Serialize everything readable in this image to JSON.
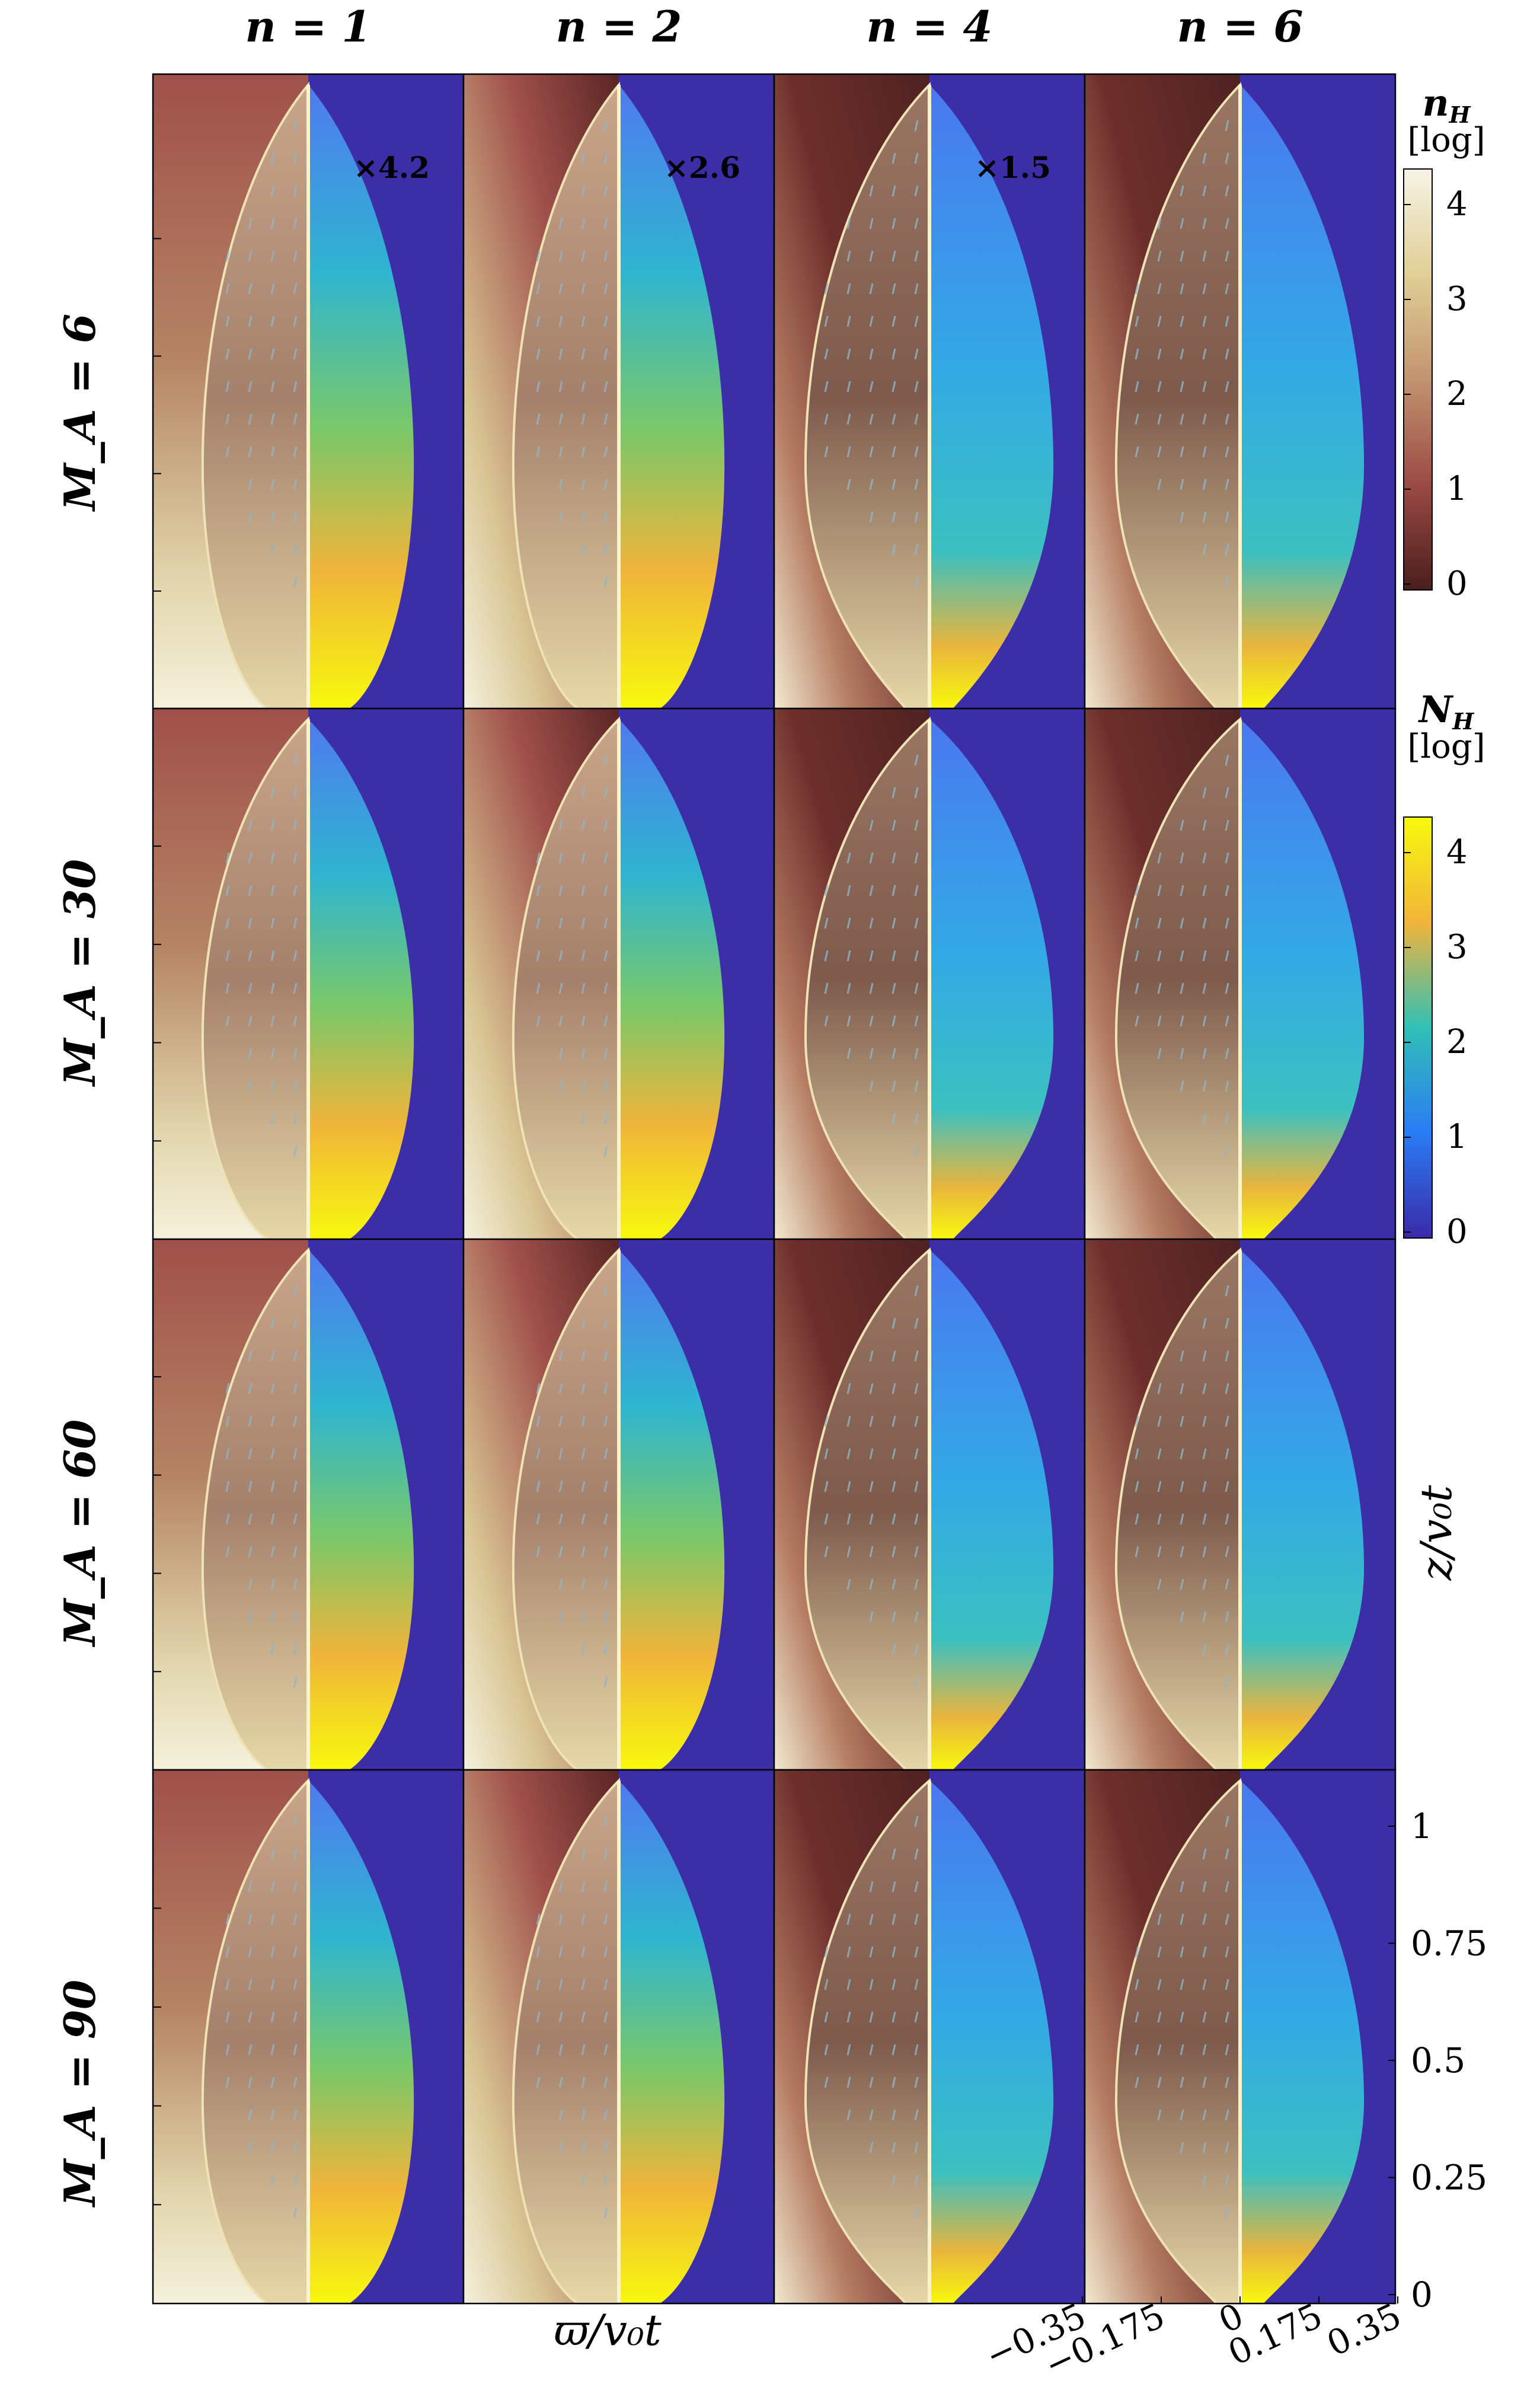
{
  "figure": {
    "column_headers": [
      "n = 1",
      "n = 2",
      "n = 4",
      "n = 6"
    ],
    "row_headers": [
      "M_A = 6",
      "M_A = 30",
      "M_A = 60",
      "M_A = 90"
    ],
    "multipliers": [
      "×4.2",
      "×2.6",
      "×1.5"
    ],
    "x_axis_label": "ϖ/v₀t",
    "z_axis_label": "z/v₀t",
    "x_ticks": [
      "−0.35",
      "−0.175",
      "0",
      "0.175",
      "0.35"
    ],
    "z_ticks": [
      "1",
      "0.75",
      "0.5",
      "0.25",
      "0"
    ]
  },
  "colorbars": [
    {
      "name": "n_H",
      "title_main": "n",
      "title_sub": "H",
      "unit": "[log]",
      "ticks": [
        "4",
        "3",
        "2",
        "1",
        "0"
      ],
      "colors": [
        "#f7f2e0",
        "#e5d6a0",
        "#c8a070",
        "#a05a48",
        "#4a1e1e"
      ]
    },
    {
      "name": "N_H",
      "title_main": "N",
      "title_sub": "H",
      "unit": "[log]",
      "ticks": [
        "4",
        "3",
        "2",
        "1",
        "0"
      ],
      "colors": [
        "#f8f90d",
        "#f1b43a",
        "#31c0b6",
        "#2a7cf5",
        "#3a2aa8"
      ]
    }
  ],
  "colors": {
    "background_right": "#3b2ea6",
    "background_left_dark": "#4f2222",
    "background_left_light": "#f4efd8",
    "axis": "#000000"
  }
}
